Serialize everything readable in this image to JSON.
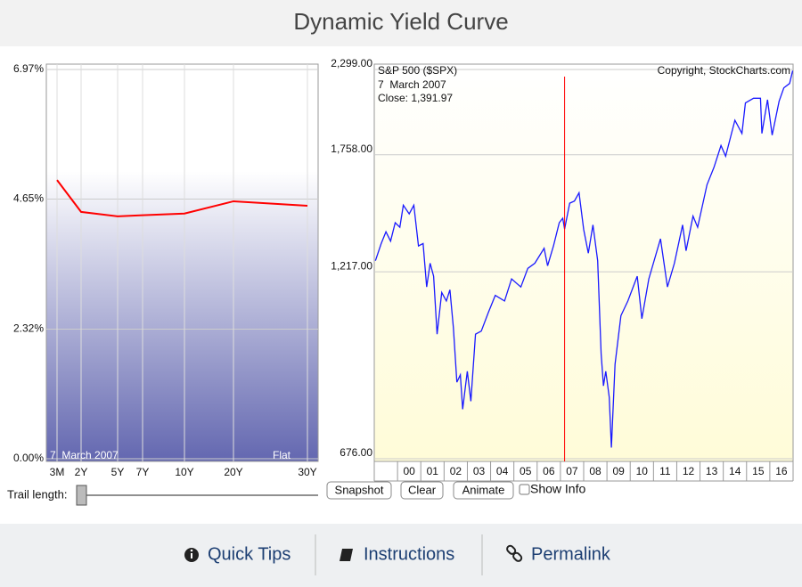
{
  "header": {
    "title": "Dynamic Yield Curve"
  },
  "chart_data": [
    {
      "type": "line",
      "categories": [
        "3M",
        "2Y",
        "5Y",
        "7Y",
        "10Y",
        "20Y",
        "30Y"
      ],
      "values": [
        4.99,
        4.42,
        4.34,
        4.36,
        4.39,
        4.61,
        4.53
      ],
      "color": "#ff0000",
      "ylim": [
        0,
        6.97
      ],
      "yticks": [
        {
          "value": 0,
          "label": "0.00%"
        },
        {
          "value": 2.32,
          "label": "2.32%"
        },
        {
          "value": 4.65,
          "label": "4.65%"
        },
        {
          "value": 6.97,
          "label": "6.97%"
        }
      ],
      "grid": true,
      "annotations": [
        "7  March 2007",
        "Flat"
      ]
    },
    {
      "type": "line",
      "title": "S&P 500 ($SPX)",
      "subtitle": "7  March 2007",
      "annotation": "Close: 1,391.97",
      "source": "Copyright, StockCharts.com",
      "color": "#1a1aff",
      "log_y": true,
      "grid": true,
      "x": [
        1999.05,
        1999.3,
        1999.5,
        1999.7,
        1999.9,
        2000.1,
        2000.25,
        2000.5,
        2000.7,
        2000.9,
        2001.1,
        2001.25,
        2001.4,
        2001.55,
        2001.7,
        2001.9,
        2002.1,
        2002.25,
        2002.4,
        2002.55,
        2002.7,
        2002.8,
        2003.0,
        2003.15,
        2003.35,
        2003.6,
        2003.9,
        2004.2,
        2004.6,
        2004.9,
        2005.3,
        2005.6,
        2005.9,
        2006.3,
        2006.45,
        2006.7,
        2006.95,
        2007.1,
        2007.18,
        2007.4,
        2007.6,
        2007.8,
        2008.0,
        2008.2,
        2008.4,
        2008.6,
        2008.75,
        2008.85,
        2008.95,
        2009.1,
        2009.19,
        2009.35,
        2009.6,
        2009.9,
        2010.3,
        2010.5,
        2010.8,
        2011.3,
        2011.6,
        2011.9,
        2012.25,
        2012.4,
        2012.7,
        2012.9,
        2013.3,
        2013.6,
        2013.9,
        2014.1,
        2014.5,
        2014.8,
        2014.95,
        2015.3,
        2015.6,
        2015.66,
        2015.9,
        2016.1,
        2016.4,
        2016.6,
        2016.85,
        2016.98
      ],
      "values": [
        1260,
        1330,
        1380,
        1340,
        1420,
        1400,
        1500,
        1460,
        1500,
        1320,
        1330,
        1160,
        1250,
        1200,
        1000,
        1140,
        1110,
        1150,
        1020,
        860,
        880,
        790,
        890,
        810,
        1000,
        1010,
        1070,
        1130,
        1110,
        1190,
        1160,
        1230,
        1250,
        1310,
        1240,
        1320,
        1420,
        1440,
        1392,
        1510,
        1520,
        1560,
        1390,
        1290,
        1410,
        1260,
        940,
        850,
        890,
        820,
        700,
        910,
        1060,
        1110,
        1200,
        1050,
        1190,
        1350,
        1160,
        1250,
        1410,
        1300,
        1450,
        1400,
        1600,
        1690,
        1810,
        1750,
        1960,
        1880,
        2070,
        2100,
        2100,
        1880,
        2090,
        1870,
        2080,
        2170,
        2200,
        2290
      ],
      "xlim": [
        1999.0,
        2017.0
      ],
      "xticks": [
        {
          "value": 2000,
          "label": "00"
        },
        {
          "value": 2001,
          "label": "01"
        },
        {
          "value": 2002,
          "label": "02"
        },
        {
          "value": 2003,
          "label": "03"
        },
        {
          "value": 2004,
          "label": "04"
        },
        {
          "value": 2005,
          "label": "05"
        },
        {
          "value": 2006,
          "label": "06"
        },
        {
          "value": 2007,
          "label": "07"
        },
        {
          "value": 2008,
          "label": "08"
        },
        {
          "value": 2009,
          "label": "09"
        },
        {
          "value": 2010,
          "label": "10"
        },
        {
          "value": 2011,
          "label": "11"
        },
        {
          "value": 2012,
          "label": "12"
        },
        {
          "value": 2013,
          "label": "13"
        },
        {
          "value": 2014,
          "label": "14"
        },
        {
          "value": 2015,
          "label": "15"
        },
        {
          "value": 2016,
          "label": "16"
        }
      ],
      "ylim": [
        676,
        2299
      ],
      "yticks": [
        {
          "value": 676,
          "label": "676.00"
        },
        {
          "value": 1217,
          "label": "1,217.00"
        },
        {
          "value": 1758,
          "label": "1,758.00"
        },
        {
          "value": 2299,
          "label": "2,299.00"
        }
      ],
      "marker": {
        "x": 2007.18,
        "color": "#ff0000"
      }
    }
  ],
  "controls": {
    "trail_label": "Trail length:",
    "buttons": [
      "Snapshot",
      "Clear",
      "Animate"
    ],
    "checkbox_label": "Show Info"
  },
  "footer": {
    "links": [
      "Quick Tips",
      "Instructions",
      "Permalink"
    ]
  }
}
